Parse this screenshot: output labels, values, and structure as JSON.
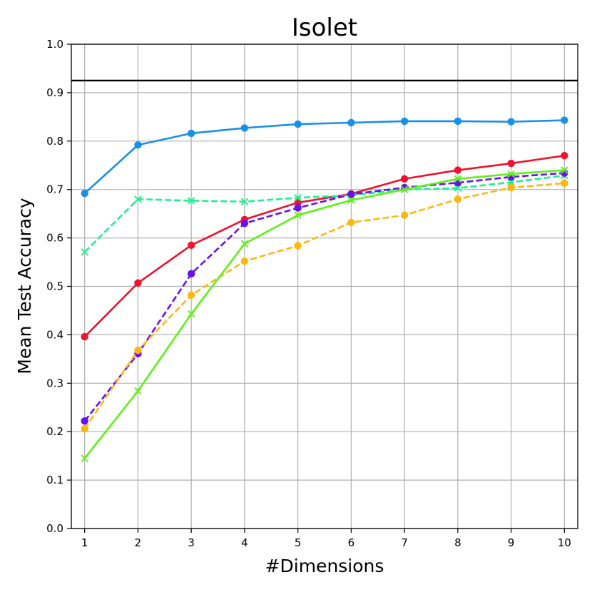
{
  "chart_data": {
    "type": "line",
    "title": "Isolet",
    "xlabel": "#Dimensions",
    "ylabel": "Mean Test Accuracy",
    "x": [
      1,
      2,
      3,
      4,
      5,
      6,
      7,
      8,
      9,
      10
    ],
    "xlim": [
      0.75,
      10.25
    ],
    "ylim": [
      0.0,
      1.0
    ],
    "xticks": [
      "1",
      "2",
      "3",
      "4",
      "5",
      "6",
      "7",
      "8",
      "9",
      "10"
    ],
    "yticks": [
      "0.0",
      "0.1",
      "0.2",
      "0.3",
      "0.4",
      "0.5",
      "0.6",
      "0.7",
      "0.8",
      "0.9",
      "1.0"
    ],
    "grid": true,
    "reference_line": {
      "y": 0.925,
      "color": "#000000"
    },
    "series": [
      {
        "color": "#1a8fe8",
        "dash": false,
        "marker": "circle",
        "values": [
          0.692,
          0.792,
          0.816,
          0.827,
          0.835,
          0.838,
          0.841,
          0.841,
          0.84,
          0.843
        ]
      },
      {
        "color": "#f0122e",
        "dash": false,
        "marker": "circle",
        "values": [
          0.396,
          0.507,
          0.585,
          0.638,
          0.673,
          0.691,
          0.722,
          0.74,
          0.754,
          0.77
        ]
      },
      {
        "color": "#1ef28e",
        "dash": true,
        "marker": "x",
        "values": [
          0.571,
          0.68,
          0.677,
          0.675,
          0.683,
          0.688,
          0.7,
          0.703,
          0.715,
          0.729
        ]
      },
      {
        "color": "#6a0ff2",
        "dash": true,
        "marker": "circle",
        "values": [
          0.222,
          0.361,
          0.526,
          0.63,
          0.662,
          0.69,
          0.704,
          0.714,
          0.726,
          0.734
        ]
      },
      {
        "color": "#ffb70f",
        "dash": true,
        "marker": "circle",
        "values": [
          0.206,
          0.368,
          0.482,
          0.552,
          0.584,
          0.632,
          0.647,
          0.68,
          0.704,
          0.713
        ]
      },
      {
        "color": "#5ef215",
        "dash": false,
        "marker": "x",
        "values": [
          0.145,
          0.284,
          0.443,
          0.588,
          0.647,
          0.678,
          0.7,
          0.722,
          0.732,
          0.74
        ]
      }
    ]
  }
}
